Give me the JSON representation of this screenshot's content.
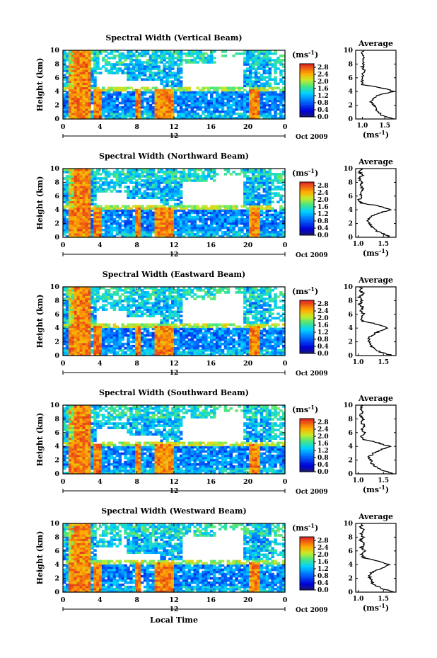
{
  "figure": {
    "xlabel": "Local Time",
    "date_label": "Oct 2009",
    "ylabel": "Height (km)",
    "unit_label": "(ms",
    "unit_sup": "-1",
    "avg_title": "Average"
  },
  "chart_data": [
    {
      "type": "heatmap",
      "title": "Spectral Width (Vertical Beam)",
      "xlabel": "Local Time",
      "ylabel": "Height (km)",
      "xlim": [
        0,
        24
      ],
      "ylim": [
        0,
        10
      ],
      "x_ticks": [
        "0",
        "4",
        "8",
        "12",
        "16",
        "20",
        "0"
      ],
      "y_ticks": [
        "0",
        "2",
        "4",
        "6",
        "8",
        "10"
      ],
      "date_mark": "12",
      "date_label": "Oct 2009",
      "colorbar": {
        "unit": "(ms-1)",
        "ticks": [
          "0.0",
          "0.4",
          "0.8",
          "1.2",
          "1.6",
          "2.0",
          "2.4",
          "2.8"
        ],
        "range": [
          0,
          3.0
        ]
      },
      "average_profile": {
        "title": "Average",
        "xlabel": "(ms-1)",
        "x_ticks": [
          "1.0",
          "1.5"
        ],
        "xlim": [
          0.85,
          1.75
        ],
        "y_ticks": [
          "0",
          "2",
          "4",
          "6",
          "8",
          "10"
        ],
        "heights": [
          0,
          0.5,
          1,
          1.5,
          2,
          2.5,
          3,
          3.5,
          4,
          4.5,
          5,
          5.5,
          6,
          6.5,
          7,
          7.5,
          8,
          8.5,
          9,
          9.5,
          10
        ],
        "values": [
          1.72,
          1.45,
          1.35,
          1.3,
          1.25,
          1.2,
          1.25,
          1.35,
          1.7,
          1.45,
          1.0,
          0.98,
          1.02,
          1.0,
          1.05,
          1.0,
          1.02,
          1.0,
          1.05,
          0.98,
          1.02
        ]
      }
    },
    {
      "type": "heatmap",
      "title": "Spectral Width (Northward Beam)",
      "xlabel": "Local Time",
      "ylabel": "Height (km)",
      "xlim": [
        0,
        24
      ],
      "ylim": [
        0,
        10
      ],
      "x_ticks": [
        "0",
        "4",
        "8",
        "12",
        "16",
        "20",
        "0"
      ],
      "y_ticks": [
        "0",
        "2",
        "4",
        "6",
        "8",
        "10"
      ],
      "date_mark": "12",
      "date_label": "Oct 2009",
      "colorbar": {
        "unit": "(ms-1)",
        "ticks": [
          "0.0",
          "0.4",
          "0.8",
          "1.2",
          "1.6",
          "2.0",
          "2.4",
          "2.8"
        ],
        "range": [
          0,
          3.0
        ]
      },
      "average_profile": {
        "title": "Average",
        "xlabel": "(ms-1)",
        "x_ticks": [
          "1.0",
          "1.5"
        ],
        "xlim": [
          0.95,
          1.75
        ],
        "y_ticks": [
          "0",
          "2",
          "4",
          "6",
          "8",
          "10"
        ],
        "heights": [
          0,
          0.5,
          1,
          1.5,
          2,
          2.5,
          3,
          3.5,
          4,
          4.5,
          5,
          5.5,
          6,
          6.5,
          7,
          7.5,
          8,
          8.5,
          9,
          9.5,
          10
        ],
        "values": [
          1.65,
          1.5,
          1.35,
          1.28,
          1.22,
          1.18,
          1.25,
          1.4,
          1.65,
          1.45,
          1.05,
          1.02,
          1.08,
          1.03,
          1.1,
          1.04,
          1.06,
          1.02,
          1.08,
          1.03,
          1.05
        ]
      }
    },
    {
      "type": "heatmap",
      "title": "Spectral Width (Eastward Beam)",
      "xlabel": "Local Time",
      "ylabel": "Height (km)",
      "xlim": [
        0,
        24
      ],
      "ylim": [
        0,
        10
      ],
      "x_ticks": [
        "0",
        "4",
        "8",
        "12",
        "16",
        "20",
        "0"
      ],
      "y_ticks": [
        "0",
        "2",
        "4",
        "6",
        "8",
        "10"
      ],
      "date_mark": "12",
      "date_label": "Oct 2009",
      "colorbar": {
        "unit": "(ms-1)",
        "ticks": [
          "0.0",
          "0.4",
          "0.8",
          "1.2",
          "1.6",
          "2.0",
          "2.4",
          "2.8"
        ],
        "range": [
          0,
          3.0
        ]
      },
      "average_profile": {
        "title": "Average",
        "xlabel": "",
        "x_ticks": [
          "1.0",
          "1.5"
        ],
        "xlim": [
          0.95,
          1.75
        ],
        "y_ticks": [
          "0",
          "2",
          "4",
          "6",
          "8",
          "10"
        ],
        "heights": [
          0,
          0.5,
          1,
          1.5,
          2,
          2.5,
          3,
          3.5,
          4,
          4.5,
          5,
          5.5,
          6,
          6.5,
          7,
          7.5,
          8,
          8.5,
          9,
          9.5,
          10
        ],
        "values": [
          1.68,
          1.45,
          1.3,
          1.25,
          1.22,
          1.2,
          1.28,
          1.4,
          1.6,
          1.42,
          1.1,
          1.05,
          1.12,
          1.05,
          1.1,
          1.03,
          1.08,
          1.02,
          1.1,
          1.04,
          1.06
        ]
      }
    },
    {
      "type": "heatmap",
      "title": "Spectral Width (Southward Beam)",
      "xlabel": "Local Time",
      "ylabel": "Height (km)",
      "xlim": [
        0,
        24
      ],
      "ylim": [
        0,
        10
      ],
      "x_ticks": [
        "0",
        "4",
        "8",
        "12",
        "16",
        "20",
        "0"
      ],
      "y_ticks": [
        "0",
        "2",
        "4",
        "6",
        "8",
        "10"
      ],
      "date_mark": "12",
      "date_label": "Oct 2009",
      "colorbar": {
        "unit": "(ms-1)",
        "ticks": [
          "0.0",
          "0.4",
          "0.8",
          "1.2",
          "1.6",
          "2.0",
          "2.4",
          "2.8"
        ],
        "range": [
          0,
          3.0
        ]
      },
      "average_profile": {
        "title": "Average",
        "xlabel": "(ms-1)",
        "x_ticks": [
          "1.0",
          "1.5"
        ],
        "xlim": [
          0.95,
          1.75
        ],
        "y_ticks": [
          "0",
          "2",
          "4",
          "6",
          "8",
          "10"
        ],
        "heights": [
          0,
          0.5,
          1,
          1.5,
          2,
          2.5,
          3,
          3.5,
          4,
          4.5,
          5,
          5.5,
          6,
          6.5,
          7,
          7.5,
          8,
          8.5,
          9,
          9.5,
          10
        ],
        "values": [
          1.7,
          1.5,
          1.35,
          1.28,
          1.25,
          1.22,
          1.3,
          1.45,
          1.62,
          1.4,
          1.12,
          1.05,
          1.15,
          1.05,
          1.12,
          1.06,
          1.1,
          1.04,
          1.1,
          1.05,
          1.08
        ]
      }
    },
    {
      "type": "heatmap",
      "title": "Spectral Width (Westward Beam)",
      "xlabel": "Local Time",
      "ylabel": "Height (km)",
      "xlim": [
        0,
        24
      ],
      "ylim": [
        0,
        10
      ],
      "x_ticks": [
        "0",
        "4",
        "8",
        "12",
        "16",
        "20",
        "0"
      ],
      "y_ticks": [
        "0",
        "2",
        "4",
        "6",
        "8",
        "10"
      ],
      "date_mark": "12",
      "date_label": "Oct 2009",
      "colorbar": {
        "unit": "(ms-1)",
        "ticks": [
          "0.0",
          "0.4",
          "0.8",
          "1.2",
          "1.6",
          "2.0",
          "2.4",
          "2.8"
        ],
        "range": [
          0,
          3.0
        ]
      },
      "average_profile": {
        "title": "Average",
        "xlabel": "(ms-1)",
        "x_ticks": [
          "1.0",
          "1.5"
        ],
        "xlim": [
          0.95,
          1.75
        ],
        "y_ticks": [
          "0",
          "2",
          "4",
          "6",
          "8",
          "10"
        ],
        "heights": [
          0,
          0.5,
          1,
          1.5,
          2,
          2.5,
          3,
          3.5,
          4,
          4.5,
          5,
          5.5,
          6,
          6.5,
          7,
          7.5,
          8,
          8.5,
          9,
          9.5,
          10
        ],
        "values": [
          1.72,
          1.48,
          1.32,
          1.26,
          1.24,
          1.22,
          1.3,
          1.48,
          1.62,
          1.38,
          1.12,
          1.06,
          1.15,
          1.06,
          1.12,
          1.05,
          1.1,
          1.04,
          1.12,
          1.05,
          1.08
        ]
      }
    }
  ]
}
